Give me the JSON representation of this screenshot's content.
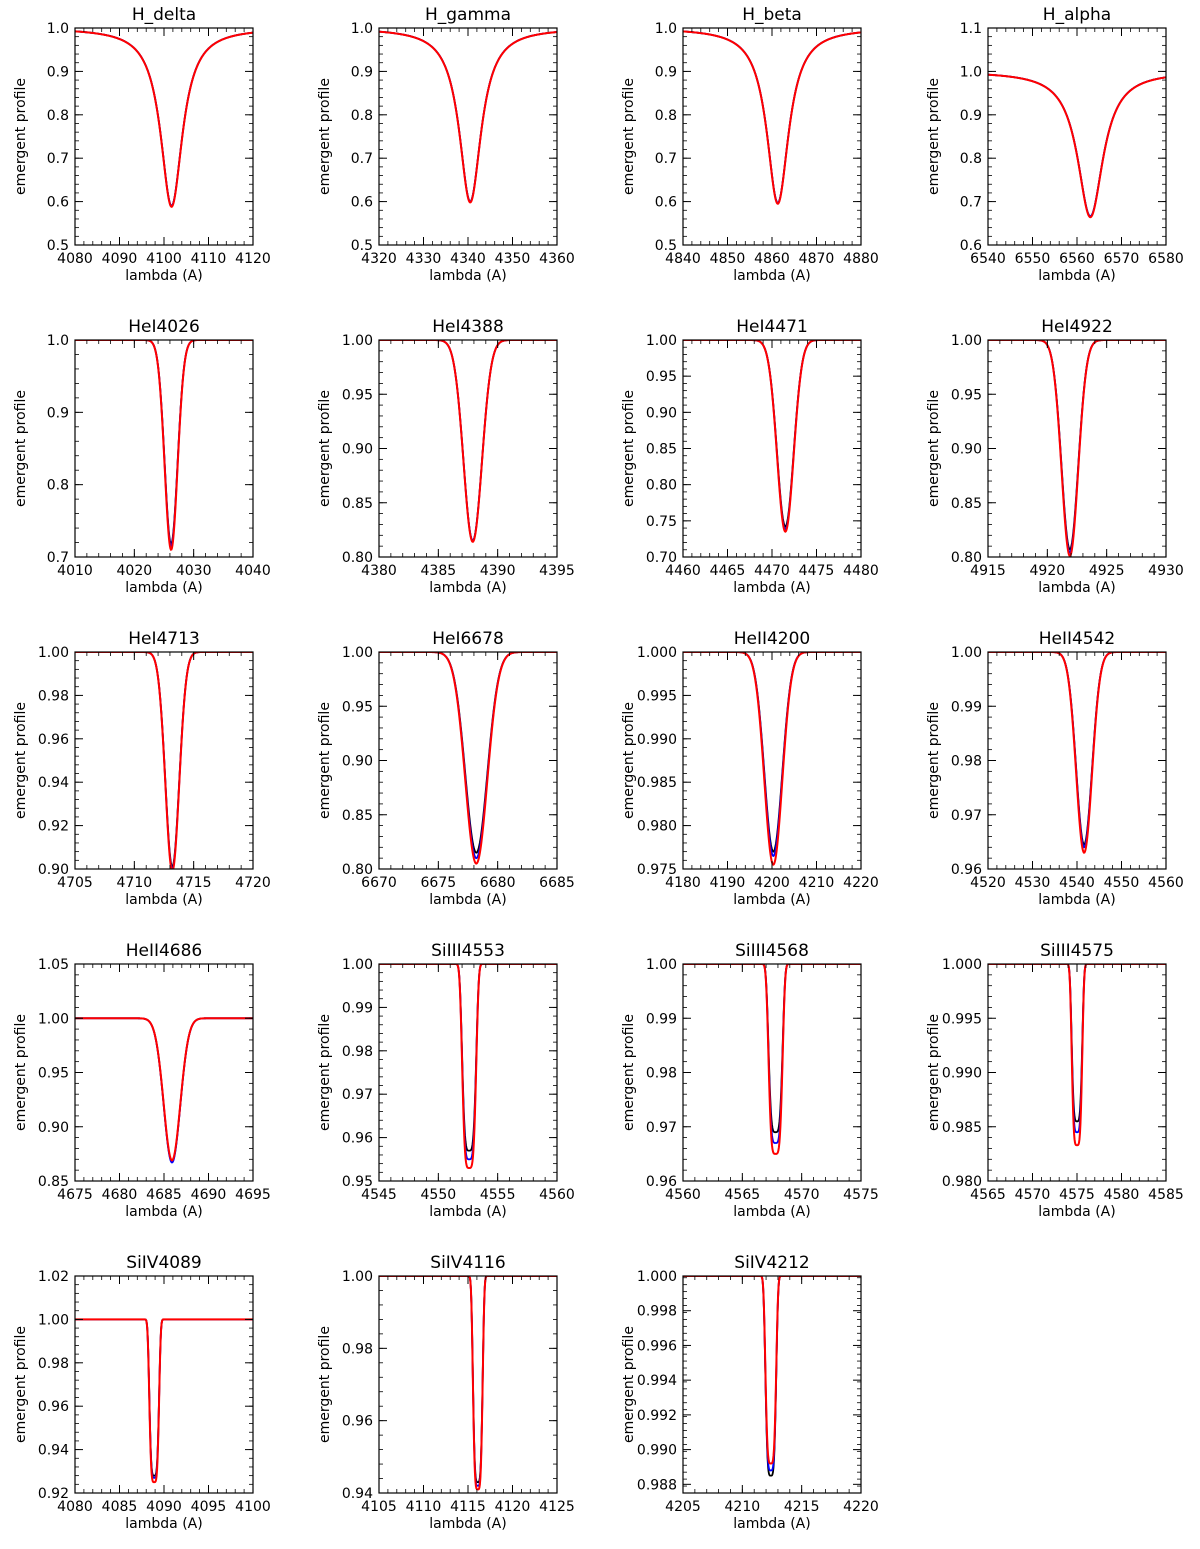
{
  "figure": {
    "type": "grid-of-line-plots",
    "rows": 5,
    "cols": 4
  },
  "colors": {
    "series_0": "#000000",
    "series_1": "#0000ff",
    "series_2": "#ff0000"
  },
  "chart_data": [
    {
      "type": "line",
      "title": "H_delta",
      "xlabel": "lambda (A)",
      "ylabel": "emergent profile",
      "xlim": [
        4080,
        4120
      ],
      "ylim": [
        0.5,
        1.0
      ],
      "xticks": [
        "4080",
        "4090",
        "4100",
        "4110",
        "4120"
      ],
      "yticks": [
        "0.5",
        "0.6",
        "0.7",
        "0.8",
        "0.9",
        "1.0"
      ],
      "center": 4101.7,
      "shape": "hydrogen",
      "width": 3.0,
      "min": [
        0.59,
        0.59,
        0.588
      ],
      "wing": 0.045
    },
    {
      "type": "line",
      "title": "H_gamma",
      "xlabel": "lambda (A)",
      "ylabel": "emergent profile",
      "xlim": [
        4320,
        4360
      ],
      "ylim": [
        0.5,
        1.0
      ],
      "xticks": [
        "4320",
        "4330",
        "4340",
        "4350",
        "4360"
      ],
      "yticks": [
        "0.5",
        "0.6",
        "0.7",
        "0.8",
        "0.9",
        "1.0"
      ],
      "center": 4340.5,
      "shape": "hydrogen",
      "width": 3.0,
      "min": [
        0.6,
        0.6,
        0.598
      ],
      "wing": 0.045
    },
    {
      "type": "line",
      "title": "H_beta",
      "xlabel": "lambda (A)",
      "ylabel": "emergent profile",
      "xlim": [
        4840,
        4880
      ],
      "ylim": [
        0.5,
        1.0
      ],
      "xticks": [
        "4840",
        "4850",
        "4860",
        "4870",
        "4880"
      ],
      "yticks": [
        "0.5",
        "0.6",
        "0.7",
        "0.8",
        "0.9",
        "1.0"
      ],
      "center": 4861.3,
      "shape": "hydrogen",
      "width": 3.0,
      "min": [
        0.597,
        0.597,
        0.595
      ],
      "wing": 0.045
    },
    {
      "type": "line",
      "title": "H_alpha",
      "xlabel": "lambda (A)",
      "ylabel": "emergent profile",
      "xlim": [
        6540,
        6580
      ],
      "ylim": [
        0.6,
        1.1
      ],
      "xticks": [
        "6540",
        "6550",
        "6560",
        "6570",
        "6580"
      ],
      "yticks": [
        "0.6",
        "0.7",
        "0.8",
        "0.9",
        "1.0",
        "1.1"
      ],
      "center": 6563,
      "shape": "hydrogen",
      "width": 3.5,
      "min": [
        0.666,
        0.666,
        0.664
      ],
      "wing": 0.07
    },
    {
      "type": "line",
      "title": "HeI4026",
      "xlabel": "lambda (A)",
      "ylabel": "emergent profile",
      "xlim": [
        4010,
        4040
      ],
      "ylim": [
        0.7,
        1.0
      ],
      "xticks": [
        "4010",
        "4020",
        "4030",
        "4040"
      ],
      "yticks": [
        "0.7",
        "0.8",
        "0.9",
        "1.0"
      ],
      "center": 4026.2,
      "shape": "gauss",
      "width": 1.4,
      "min": [
        0.718,
        0.715,
        0.71
      ],
      "wing": 0.005
    },
    {
      "type": "line",
      "title": "HeI4388",
      "xlabel": "lambda (A)",
      "ylabel": "emergent profile",
      "xlim": [
        4380,
        4395
      ],
      "ylim": [
        0.8,
        1.0
      ],
      "xticks": [
        "4380",
        "4385",
        "4390",
        "4395"
      ],
      "yticks": [
        "0.80",
        "0.85",
        "0.90",
        "0.95",
        "1.00"
      ],
      "center": 4387.9,
      "shape": "gauss",
      "width": 1.0,
      "min": [
        0.815,
        0.815,
        0.814
      ],
      "wing": 0.005
    },
    {
      "type": "line",
      "title": "HeI4471",
      "xlabel": "lambda (A)",
      "ylabel": "emergent profile",
      "xlim": [
        4460,
        4480
      ],
      "ylim": [
        0.7,
        1.0
      ],
      "xticks": [
        "4460",
        "4465",
        "4470",
        "4475",
        "4480"
      ],
      "yticks": [
        "0.70",
        "0.75",
        "0.80",
        "0.85",
        "0.90",
        "0.95",
        "1.00"
      ],
      "center": 4471.5,
      "shape": "gauss",
      "width": 1.2,
      "min": [
        0.742,
        0.738,
        0.735
      ],
      "wing": 0.005
    },
    {
      "type": "line",
      "title": "HeI4922",
      "xlabel": "lambda (A)",
      "ylabel": "emergent profile",
      "xlim": [
        4915,
        4930
      ],
      "ylim": [
        0.8,
        1.0
      ],
      "xticks": [
        "4915",
        "4920",
        "4925",
        "4930"
      ],
      "yticks": [
        "0.80",
        "0.85",
        "0.90",
        "0.95",
        "1.00"
      ],
      "center": 4921.9,
      "shape": "gauss",
      "width": 0.9,
      "min": [
        0.807,
        0.804,
        0.801
      ],
      "wing": 0.005
    },
    {
      "type": "line",
      "title": "HeI4713",
      "xlabel": "lambda (A)",
      "ylabel": "emergent profile",
      "xlim": [
        4705,
        4720
      ],
      "ylim": [
        0.9,
        1.0
      ],
      "xticks": [
        "4705",
        "4710",
        "4715",
        "4720"
      ],
      "yticks": [
        "0.90",
        "0.92",
        "0.94",
        "0.96",
        "0.98",
        "1.00"
      ],
      "center": 4713.2,
      "shape": "gauss",
      "width": 0.75,
      "min": [
        0.901,
        0.9,
        0.899
      ],
      "wing": 0.0
    },
    {
      "type": "line",
      "title": "HeI6678",
      "xlabel": "lambda (A)",
      "ylabel": "emergent profile",
      "xlim": [
        6670,
        6685
      ],
      "ylim": [
        0.8,
        1.0
      ],
      "xticks": [
        "6670",
        "6675",
        "6680",
        "6685"
      ],
      "yticks": [
        "0.80",
        "0.85",
        "0.90",
        "0.95",
        "1.00"
      ],
      "center": 6678.2,
      "shape": "gauss",
      "width": 1.2,
      "min": [
        0.815,
        0.81,
        0.805
      ],
      "wing": 0.0
    },
    {
      "type": "line",
      "title": "HeII4200",
      "xlabel": "lambda (A)",
      "ylabel": "emergent profile",
      "xlim": [
        4180,
        4220
      ],
      "ylim": [
        0.975,
        1.0
      ],
      "xticks": [
        "4180",
        "4190",
        "4200",
        "4210",
        "4220"
      ],
      "yticks": [
        "0.975",
        "0.980",
        "0.985",
        "0.990",
        "0.995",
        "1.000"
      ],
      "center": 4200.3,
      "shape": "gauss",
      "width": 2.6,
      "min": [
        0.977,
        0.9765,
        0.9755
      ],
      "wing": 0.0
    },
    {
      "type": "line",
      "title": "HeII4542",
      "xlabel": "lambda (A)",
      "ylabel": "emergent profile",
      "xlim": [
        4520,
        4560
      ],
      "ylim": [
        0.96,
        1.0
      ],
      "xticks": [
        "4520",
        "4530",
        "4540",
        "4550",
        "4560"
      ],
      "yticks": [
        "0.96",
        "0.97",
        "0.98",
        "0.99",
        "1.00"
      ],
      "center": 4541.6,
      "shape": "gauss",
      "width": 2.3,
      "min": [
        0.9645,
        0.964,
        0.963
      ],
      "wing": 0.0
    },
    {
      "type": "line",
      "title": "HeII4686",
      "xlabel": "lambda (A)",
      "ylabel": "emergent profile",
      "xlim": [
        4675,
        4695
      ],
      "ylim": [
        0.85,
        1.05
      ],
      "xticks": [
        "4675",
        "4680",
        "4685",
        "4690",
        "4695"
      ],
      "yticks": [
        "0.85",
        "0.90",
        "0.95",
        "1.00",
        "1.05"
      ],
      "center": 4685.9,
      "shape": "gauss",
      "width": 1.2,
      "min": [
        0.868,
        0.867,
        0.869
      ],
      "wing": 0.0
    },
    {
      "type": "line",
      "title": "SiIII4553",
      "xlabel": "lambda (A)",
      "ylabel": "emergent profile",
      "xlim": [
        4545,
        4560
      ],
      "ylim": [
        0.95,
        1.0
      ],
      "xticks": [
        "4545",
        "4550",
        "4555",
        "4560"
      ],
      "yticks": [
        "0.95",
        "0.96",
        "0.97",
        "0.98",
        "0.99",
        "1.00"
      ],
      "center": 4552.6,
      "shape": "flat",
      "width": 0.65,
      "min": [
        0.957,
        0.955,
        0.953
      ],
      "wing": 0.0
    },
    {
      "type": "line",
      "title": "SiIII4568",
      "xlabel": "lambda (A)",
      "ylabel": "emergent profile",
      "xlim": [
        4560,
        4575
      ],
      "ylim": [
        0.96,
        1.0
      ],
      "xticks": [
        "4560",
        "4565",
        "4570",
        "4575"
      ],
      "yticks": [
        "0.96",
        "0.97",
        "0.98",
        "0.99",
        "1.00"
      ],
      "center": 4567.8,
      "shape": "flat",
      "width": 0.65,
      "min": [
        0.969,
        0.967,
        0.965
      ],
      "wing": 0.0
    },
    {
      "type": "line",
      "title": "SiIII4575",
      "xlabel": "lambda (A)",
      "ylabel": "emergent profile",
      "xlim": [
        4565,
        4585
      ],
      "ylim": [
        0.98,
        1.0
      ],
      "xticks": [
        "4565",
        "4570",
        "4575",
        "4580",
        "4585"
      ],
      "yticks": [
        "0.980",
        "0.985",
        "0.990",
        "0.995",
        "1.000"
      ],
      "center": 4575.0,
      "shape": "flat",
      "width": 0.65,
      "min": [
        0.9855,
        0.9845,
        0.9833
      ],
      "wing": 0.0
    },
    {
      "type": "line",
      "title": "SiIV4089",
      "xlabel": "lambda (A)",
      "ylabel": "emergent profile",
      "xlim": [
        4080,
        4100
      ],
      "ylim": [
        0.92,
        1.02
      ],
      "xticks": [
        "4080",
        "4085",
        "4090",
        "4095",
        "4100"
      ],
      "yticks": [
        "0.92",
        "0.94",
        "0.96",
        "0.98",
        "1.00",
        "1.02"
      ],
      "center": 4088.9,
      "shape": "flat",
      "width": 0.6,
      "min": [
        0.928,
        0.927,
        0.925
      ],
      "wing": 0.0
    },
    {
      "type": "line",
      "title": "SiIV4116",
      "xlabel": "lambda (A)",
      "ylabel": "emergent profile",
      "xlim": [
        4105,
        4125
      ],
      "ylim": [
        0.94,
        1.0
      ],
      "xticks": [
        "4105",
        "4110",
        "4115",
        "4120",
        "4125"
      ],
      "yticks": [
        "0.94",
        "0.96",
        "0.98",
        "1.00"
      ],
      "center": 4116.1,
      "shape": "flat",
      "width": 0.6,
      "min": [
        0.943,
        0.942,
        0.941
      ],
      "wing": 0.0
    },
    {
      "type": "line",
      "title": "SiIV4212",
      "xlabel": "lambda (A)",
      "ylabel": "emergent profile",
      "xlim": [
        4205,
        4220
      ],
      "ylim": [
        0.9875,
        1.0
      ],
      "xticks": [
        "4205",
        "4210",
        "4215",
        "4220"
      ],
      "yticks": [
        "0.988",
        "0.990",
        "0.992",
        "0.994",
        "0.996",
        "0.998",
        "1.000"
      ],
      "center": 4212.4,
      "shape": "flat",
      "width": 0.5,
      "min": [
        0.9885,
        0.9888,
        0.9892
      ],
      "wing": 0.0
    }
  ]
}
